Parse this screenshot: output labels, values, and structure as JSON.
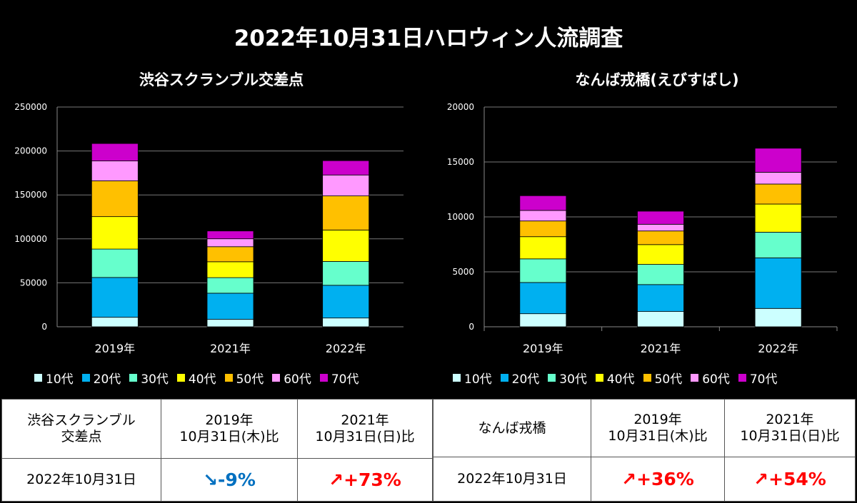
{
  "title": "2022年10月31日ハロウィン人流調査",
  "colors": {
    "10代": "#ccffff",
    "20代": "#00b0f0",
    "30代": "#66ffcc",
    "40代": "#ffff00",
    "50代": "#ffc000",
    "60代": "#ff99ff",
    "70代": "#cc00cc",
    "up": "#ff0000",
    "down": "#0070c0"
  },
  "chart_data": [
    {
      "type": "bar",
      "stacked": true,
      "title": "渋谷スクランブル交差点",
      "categories": [
        "2019年",
        "2021年",
        "2022年"
      ],
      "ylim": [
        0,
        250000
      ],
      "yticks": [
        "0",
        "50000",
        "100000",
        "150000",
        "200000",
        "250000"
      ],
      "grid": true,
      "legend": "bottom",
      "series": [
        {
          "name": "10代",
          "values": [
            10800,
            8400,
            10000
          ]
        },
        {
          "name": "20代",
          "values": [
            45300,
            29800,
            37200
          ]
        },
        {
          "name": "30代",
          "values": [
            32300,
            17700,
            27100
          ]
        },
        {
          "name": "40代",
          "values": [
            36900,
            18100,
            35800
          ]
        },
        {
          "name": "50代",
          "values": [
            40700,
            17100,
            38800
          ]
        },
        {
          "name": "60代",
          "values": [
            22700,
            9000,
            23800
          ]
        },
        {
          "name": "70代",
          "values": [
            19800,
            8900,
            16300
          ]
        }
      ]
    },
    {
      "type": "bar",
      "stacked": true,
      "title": "なんば戎橋(えびすばし)",
      "categories": [
        "2019年",
        "2021年",
        "2022年"
      ],
      "ylim": [
        0,
        20000
      ],
      "yticks": [
        "0",
        "5000",
        "10000",
        "15000",
        "20000"
      ],
      "grid": true,
      "legend": "bottom",
      "series": [
        {
          "name": "10代",
          "values": [
            1190,
            1390,
            1670
          ]
        },
        {
          "name": "20代",
          "values": [
            2840,
            2450,
            4600
          ]
        },
        {
          "name": "30代",
          "values": [
            2150,
            1840,
            2340
          ]
        },
        {
          "name": "40代",
          "values": [
            2020,
            1800,
            2560
          ]
        },
        {
          "name": "50代",
          "values": [
            1430,
            1240,
            1820
          ]
        },
        {
          "name": "60代",
          "values": [
            960,
            610,
            1070
          ]
        },
        {
          "name": "70代",
          "values": [
            1340,
            1190,
            2190
          ]
        }
      ]
    }
  ],
  "tables": [
    {
      "place": "渋谷スクランブル交差点",
      "place_line1": "渋谷スクランブル",
      "place_line2": "交差点",
      "h1_line1": "2019年",
      "h1_line2": "10月31日(木)比",
      "h2_line1": "2021年",
      "h2_line2": "10月31日(日)比",
      "row_label": "2022年10月31日",
      "v1": "↘-9%",
      "v2": "↗+73%"
    },
    {
      "place": "なんば戎橋",
      "h1_line1": "2019年",
      "h1_line2": "10月31日(木)比",
      "h2_line1": "2021年",
      "h2_line2": "10月31日(日)比",
      "row_label": "2022年10月31日",
      "v1": "↗+36%",
      "v2": "↗+54%"
    }
  ]
}
